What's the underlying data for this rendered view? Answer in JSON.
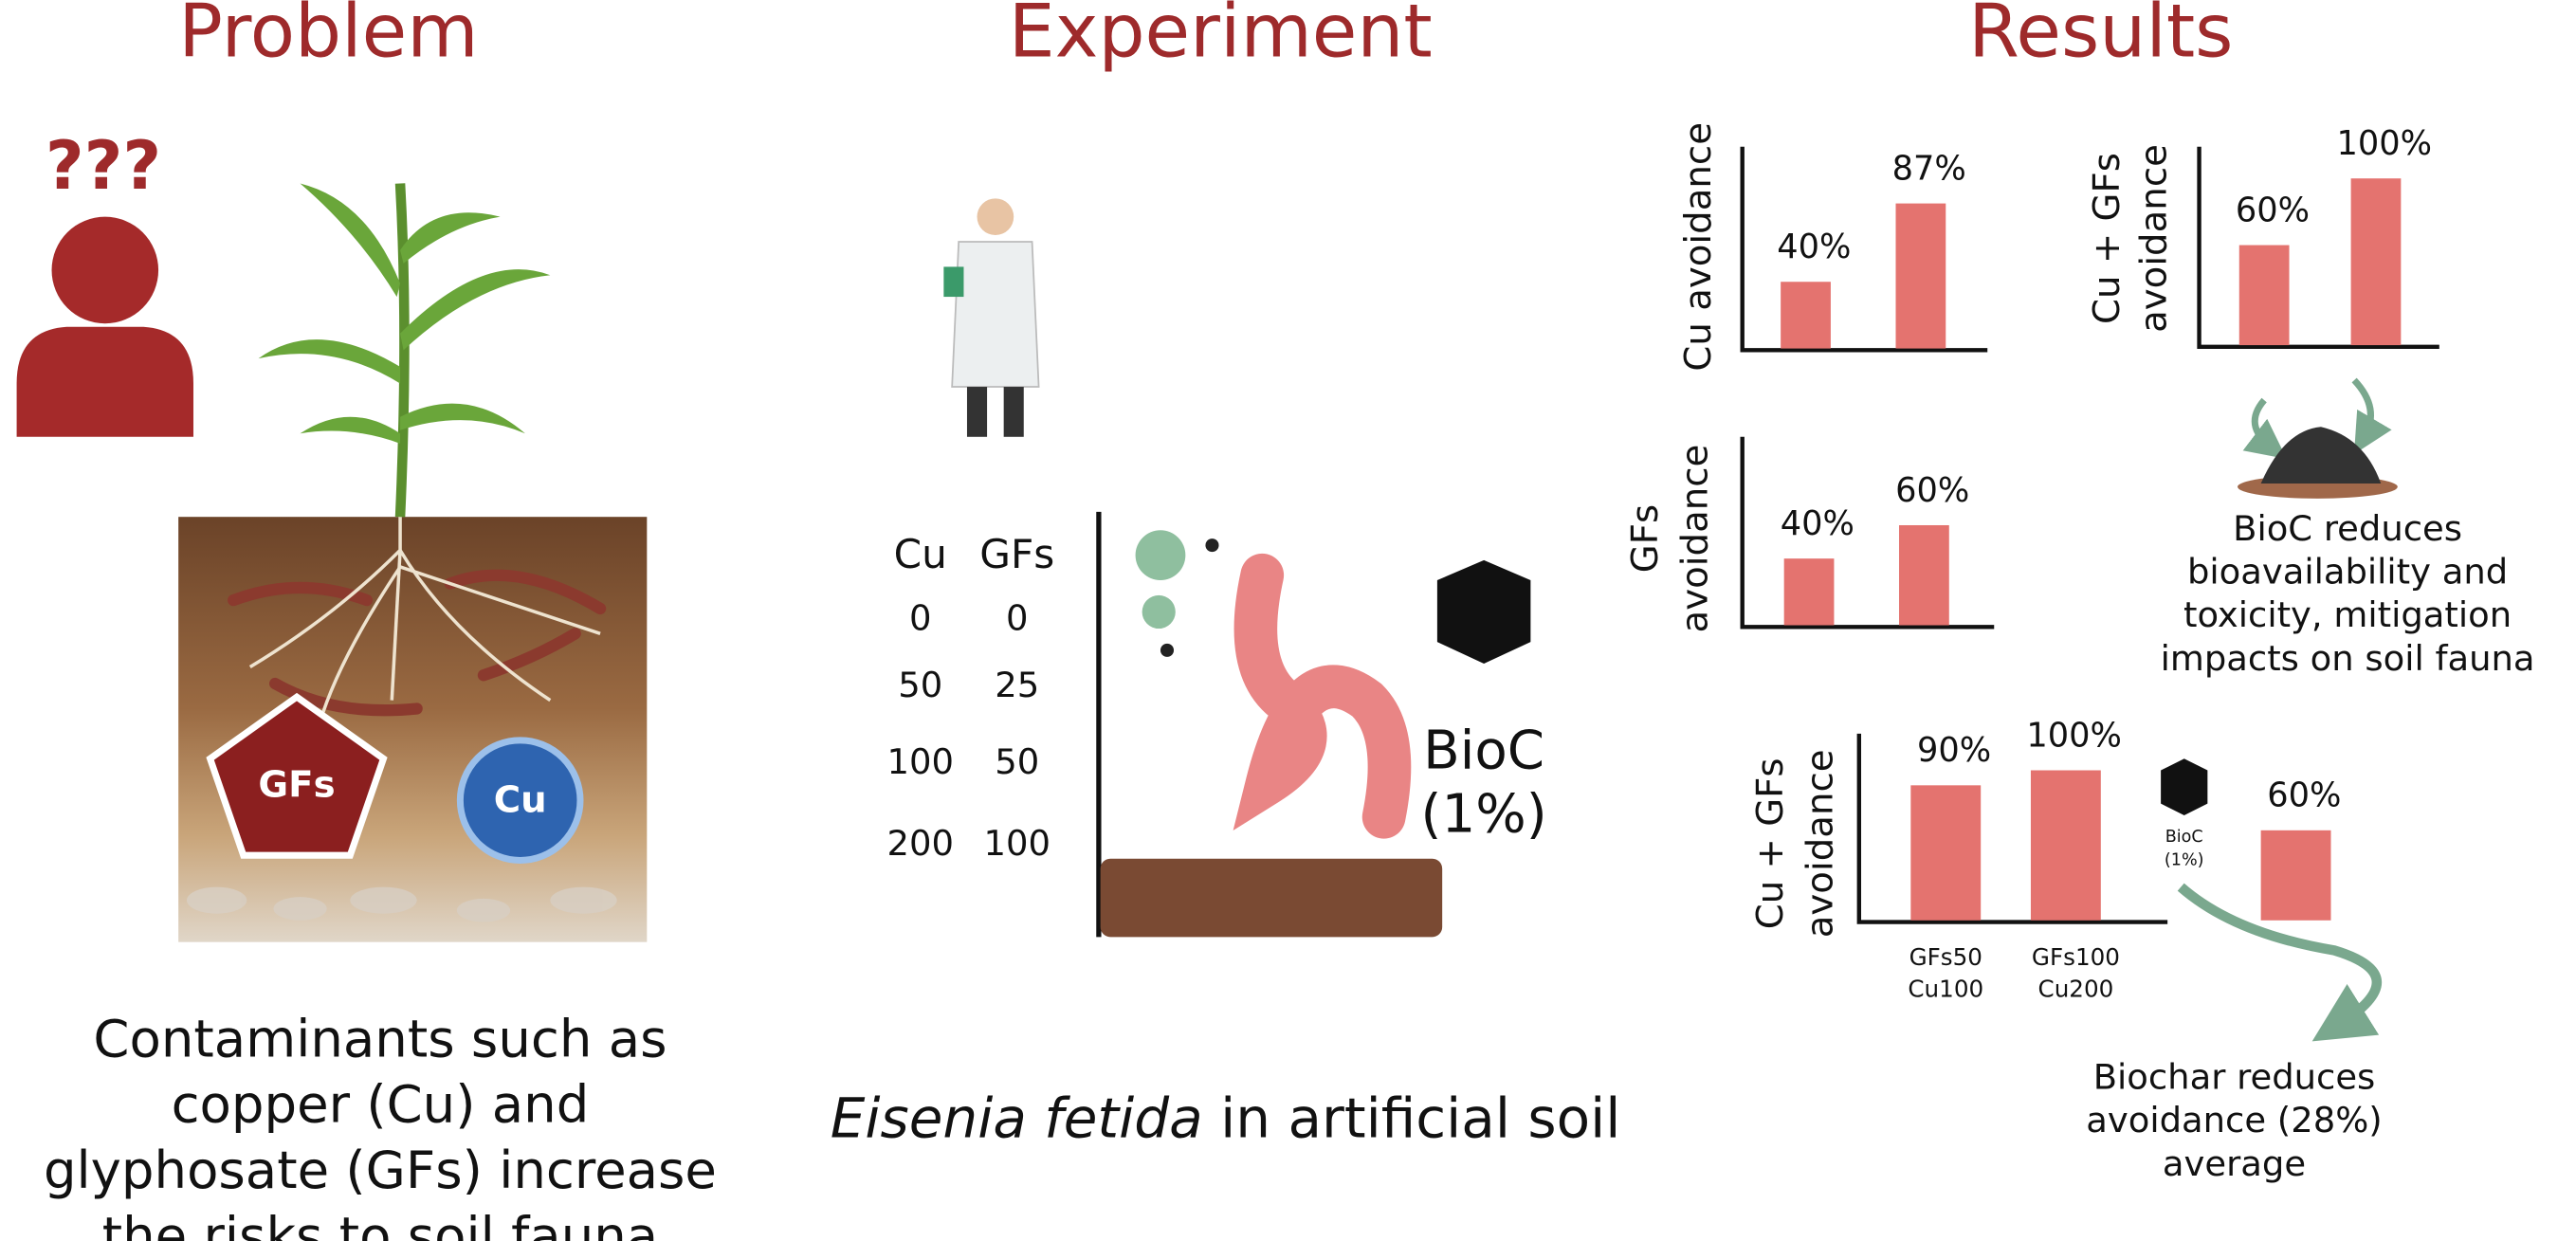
{
  "problem": {
    "title": "Problem",
    "question_marks": "???",
    "gfs_label": "GFs",
    "cu_label": "Cu",
    "text": [
      "Contaminants such as",
      "copper (Cu) and",
      "glyphosate (GFs) increase",
      "the risks to soil fauna"
    ]
  },
  "experiment": {
    "title": "Experiment",
    "table": {
      "header": [
        "Cu",
        "GFs"
      ],
      "rows": [
        [
          "0",
          "0"
        ],
        [
          "50",
          "25"
        ],
        [
          "100",
          "50"
        ],
        [
          "200",
          "100"
        ]
      ]
    },
    "bioc_label": [
      "BioC",
      "(1%)"
    ],
    "caption": {
      "species": "Eisenia fetida",
      "rest": " in artificial soil"
    }
  },
  "results": {
    "title": "Results",
    "charts": [
      {
        "type": "bar",
        "ylabel": [
          "Cu avoidance"
        ],
        "values": [
          40,
          87
        ],
        "value_labels": [
          "40%",
          "87%"
        ],
        "ylim": [
          0,
          100
        ],
        "color": "#e4736f"
      },
      {
        "type": "bar",
        "ylabel": [
          "Cu + GFs",
          "avoidance"
        ],
        "values": [
          60,
          100
        ],
        "value_labels": [
          "60%",
          "100%"
        ],
        "ylim": [
          0,
          100
        ],
        "color": "#e4736f"
      },
      {
        "type": "bar",
        "ylabel": [
          "GFs",
          "avoidance"
        ],
        "values": [
          40,
          60
        ],
        "value_labels": [
          "40%",
          "60%"
        ],
        "ylim": [
          0,
          100
        ],
        "color": "#e4736f"
      },
      {
        "type": "bar",
        "ylabel": [
          "Cu + GFs",
          "avoidance"
        ],
        "categories": [
          [
            "GFs50",
            "Cu100"
          ],
          [
            "GFs100",
            "Cu200"
          ],
          [
            "BioC",
            "(1%)"
          ]
        ],
        "values": [
          90,
          100,
          60
        ],
        "value_labels": [
          "90%",
          "100%",
          "60%"
        ],
        "ylim": [
          0,
          100
        ],
        "color": "#e4736f"
      }
    ],
    "note_bioc": [
      "BioC reduces",
      "bioavailability and",
      "toxicity, mitigation",
      "impacts on soil fauna"
    ],
    "note_biochar": [
      "Biochar reduces",
      "avoidance (28%)",
      "average"
    ]
  }
}
